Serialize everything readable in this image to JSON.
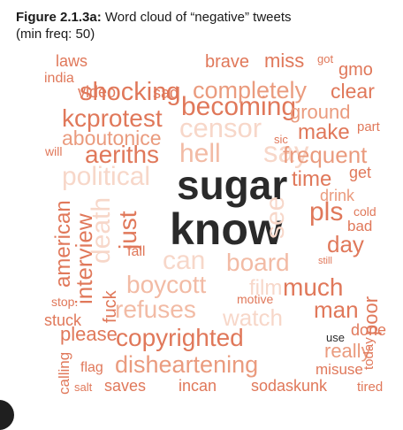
{
  "caption": {
    "figure_label": "Figure 2.1.3a:",
    "title": "Word cloud of “negative” tweets",
    "subtitle": "(min freq: 50)"
  },
  "chart_data": {
    "type": "wordcloud",
    "title": "Word cloud of “negative” tweets",
    "subtitle": "(min freq: 50)",
    "colors": {
      "dark": "#2a2a2a",
      "strong": "#e0785a",
      "medium": "#ea9b7e",
      "light": "#f2bba5",
      "pale": "#f7d7c9"
    },
    "words": [
      {
        "text": "sugar",
        "color": "#2a2a2a",
        "orientation": "horizontal"
      },
      {
        "text": "know",
        "color": "#2a2a2a",
        "orientation": "horizontal"
      },
      {
        "text": "becoming",
        "color": "#e0785a",
        "orientation": "horizontal"
      },
      {
        "text": "kcprotest",
        "color": "#e0785a",
        "orientation": "horizontal"
      },
      {
        "text": "shocking",
        "color": "#e0785a",
        "orientation": "horizontal"
      },
      {
        "text": "completely",
        "color": "#ea9b7e",
        "orientation": "horizontal"
      },
      {
        "text": "censor",
        "color": "#f7d7c9",
        "orientation": "horizontal"
      },
      {
        "text": "say",
        "color": "#f7d7c9",
        "orientation": "horizontal"
      },
      {
        "text": "frequent",
        "color": "#ea9b7e",
        "orientation": "horizontal"
      },
      {
        "text": "aeriths",
        "color": "#e0785a",
        "orientation": "horizontal"
      },
      {
        "text": "hell",
        "color": "#f2bba5",
        "orientation": "horizontal"
      },
      {
        "text": "political",
        "color": "#f7d7c9",
        "orientation": "horizontal"
      },
      {
        "text": "aboutonice",
        "color": "#ea9b7e",
        "orientation": "horizontal"
      },
      {
        "text": "make",
        "color": "#e0785a",
        "orientation": "horizontal"
      },
      {
        "text": "can",
        "color": "#f7d7c9",
        "orientation": "horizontal"
      },
      {
        "text": "board",
        "color": "#f2bba5",
        "orientation": "horizontal"
      },
      {
        "text": "boycott",
        "color": "#f2bba5",
        "orientation": "horizontal"
      },
      {
        "text": "film",
        "color": "#f7d7c9",
        "orientation": "horizontal"
      },
      {
        "text": "much",
        "color": "#e0785a",
        "orientation": "horizontal"
      },
      {
        "text": "refuses",
        "color": "#f2bba5",
        "orientation": "horizontal"
      },
      {
        "text": "watch",
        "color": "#f7d7c9",
        "orientation": "horizontal"
      },
      {
        "text": "copyrighted",
        "color": "#e0785a",
        "orientation": "horizontal"
      },
      {
        "text": "disheartening",
        "color": "#ea9b7e",
        "orientation": "horizontal"
      },
      {
        "text": "please",
        "color": "#e0785a",
        "orientation": "horizontal"
      },
      {
        "text": "time",
        "color": "#e0785a",
        "orientation": "horizontal"
      },
      {
        "text": "pls",
        "color": "#e0785a",
        "orientation": "horizontal"
      },
      {
        "text": "day",
        "color": "#e0785a",
        "orientation": "horizontal"
      },
      {
        "text": "man",
        "color": "#e0785a",
        "orientation": "horizontal"
      },
      {
        "text": "really",
        "color": "#ea9b7e",
        "orientation": "horizontal"
      },
      {
        "text": "ground",
        "color": "#ea9b7e",
        "orientation": "horizontal"
      },
      {
        "text": "clear",
        "color": "#e0785a",
        "orientation": "horizontal"
      },
      {
        "text": "brave",
        "color": "#e0785a",
        "orientation": "horizontal"
      },
      {
        "text": "miss",
        "color": "#e0785a",
        "orientation": "horizontal"
      },
      {
        "text": "gmo",
        "color": "#e0785a",
        "orientation": "horizontal"
      },
      {
        "text": "laws",
        "color": "#e0785a",
        "orientation": "horizontal"
      },
      {
        "text": "india",
        "color": "#e0785a",
        "orientation": "horizontal"
      },
      {
        "text": "video",
        "color": "#e0785a",
        "orientation": "horizontal"
      },
      {
        "text": "sad",
        "color": "#e0785a",
        "orientation": "horizontal"
      },
      {
        "text": "got",
        "color": "#e0785a",
        "orientation": "horizontal"
      },
      {
        "text": "part",
        "color": "#e0785a",
        "orientation": "horizontal"
      },
      {
        "text": "sic",
        "color": "#e0785a",
        "orientation": "horizontal"
      },
      {
        "text": "will",
        "color": "#e0785a",
        "orientation": "horizontal"
      },
      {
        "text": "get",
        "color": "#e0785a",
        "orientation": "horizontal"
      },
      {
        "text": "drink",
        "color": "#ea9b7e",
        "orientation": "horizontal"
      },
      {
        "text": "cold",
        "color": "#e0785a",
        "orientation": "horizontal"
      },
      {
        "text": "bad",
        "color": "#e0785a",
        "orientation": "horizontal"
      },
      {
        "text": "fall",
        "color": "#e0785a",
        "orientation": "horizontal"
      },
      {
        "text": "still",
        "color": "#e0785a",
        "orientation": "horizontal"
      },
      {
        "text": "motive",
        "color": "#e0785a",
        "orientation": "horizontal"
      },
      {
        "text": "stop.",
        "color": "#e0785a",
        "orientation": "horizontal"
      },
      {
        "text": "stuck",
        "color": "#e0785a",
        "orientation": "horizontal"
      },
      {
        "text": "use",
        "color": "#2a2a2a",
        "orientation": "horizontal"
      },
      {
        "text": "done",
        "color": "#e0785a",
        "orientation": "horizontal"
      },
      {
        "text": "flag",
        "color": "#e0785a",
        "orientation": "horizontal"
      },
      {
        "text": "misuse",
        "color": "#e0785a",
        "orientation": "horizontal"
      },
      {
        "text": "salt",
        "color": "#e0785a",
        "orientation": "horizontal"
      },
      {
        "text": "saves",
        "color": "#e0785a",
        "orientation": "horizontal"
      },
      {
        "text": "incan",
        "color": "#e0785a",
        "orientation": "horizontal"
      },
      {
        "text": "sodaskunk",
        "color": "#e0785a",
        "orientation": "horizontal"
      },
      {
        "text": "tired",
        "color": "#e0785a",
        "orientation": "horizontal"
      },
      {
        "text": "american",
        "color": "#e0785a",
        "orientation": "vertical"
      },
      {
        "text": "interview",
        "color": "#e0785a",
        "orientation": "vertical"
      },
      {
        "text": "death",
        "color": "#f7d7c9",
        "orientation": "vertical"
      },
      {
        "text": "fuck",
        "color": "#e0785a",
        "orientation": "vertical"
      },
      {
        "text": "just",
        "color": "#e0785a",
        "orientation": "vertical"
      },
      {
        "text": "calling",
        "color": "#e0785a",
        "orientation": "vertical"
      },
      {
        "text": "see",
        "color": "#f7d7c9",
        "orientation": "vertical"
      },
      {
        "text": "poor",
        "color": "#e0785a",
        "orientation": "vertical"
      },
      {
        "text": "today",
        "color": "#e0785a",
        "orientation": "vertical"
      }
    ]
  }
}
